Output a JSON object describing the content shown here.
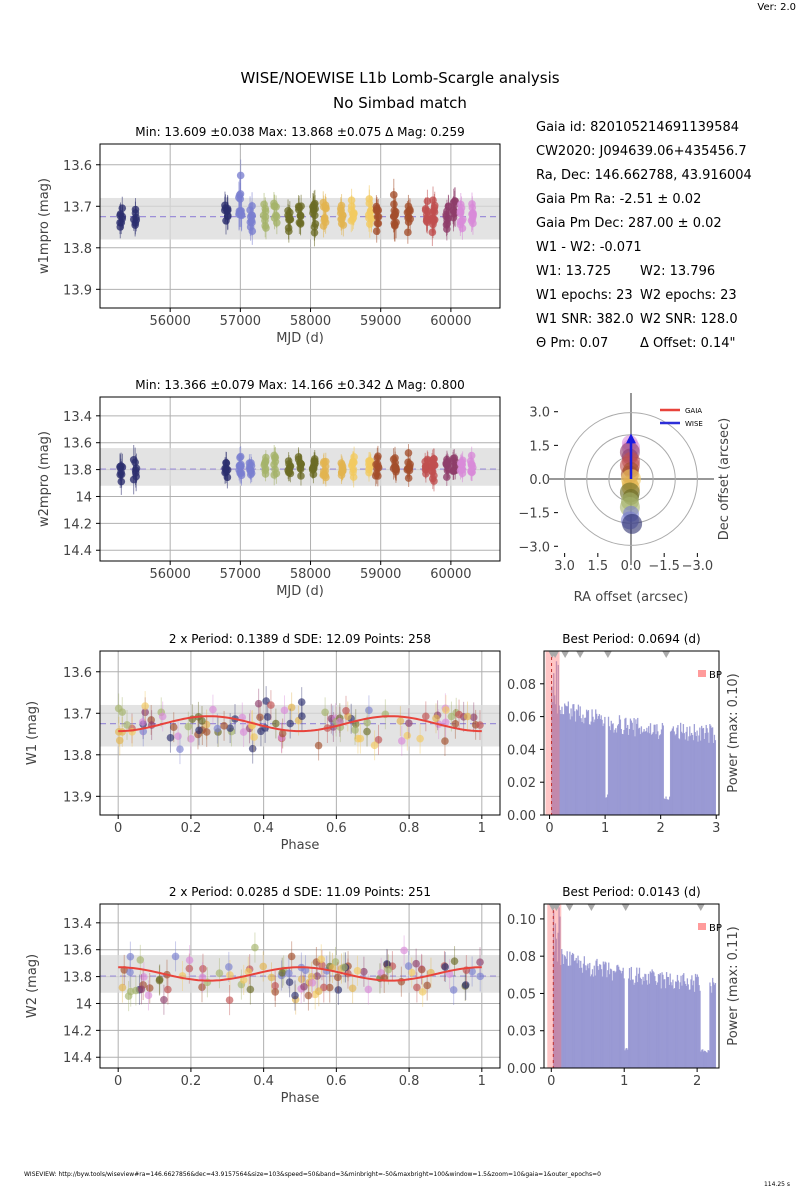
{
  "version": "Ver: 2.0",
  "title": "WISE/NOEWISE L1b Lomb-Scargle analysis",
  "subtitle": "No Simbad match",
  "info": [
    {
      "a": "Gaia id: 820105214691139584",
      "b": ""
    },
    {
      "a": "CW2020: J094639.06+435456.7",
      "b": ""
    },
    {
      "a": "Ra, Dec: 146.662788, 43.916004",
      "b": ""
    },
    {
      "a": "Gaia Pm Ra: -2.51 ± 0.02",
      "b": ""
    },
    {
      "a": "Gaia Pm Dec: 287.00 ± 0.02",
      "b": ""
    },
    {
      "a": "W1 - W2: -0.071",
      "b": ""
    },
    {
      "a": "W1: 13.725",
      "b": "W2: 13.796"
    },
    {
      "a": "W1 epochs: 23",
      "b": "W2 epochs: 23"
    },
    {
      "a": "W1 SNR: 382.0",
      "b": "W2 SNR: 128.0"
    },
    {
      "a": "Θ Pm: 0.07",
      "b": "Δ Offset: 0.14\""
    }
  ],
  "footer": "WISEVIEW: http://byw.tools/wiseview#ra=146.6627856&dec=43.9157564&size=103&speed=50&band=3&minbright=-50&maxbright=100&window=1.5&zoom=10&gaia=1&outer_epochs=0",
  "timing": "114.25 s",
  "colors": {
    "epochs": [
      "#2b2e6e",
      "#7a7fcf",
      "#a5b36a",
      "#6b6b25",
      "#e2b44f",
      "#f2ca60",
      "#a34e2b",
      "#c05050",
      "#8e3d6a",
      "#d88ad8"
    ],
    "fit": "#e8433b",
    "mean": "#9c8fd8",
    "periodogram": "#8f8fcf",
    "bp": "#ff7070"
  },
  "chart_data": [
    {
      "type": "scatter",
      "id": "w1-lightcurve",
      "title": "Min: 13.609 ±0.038     Max: 13.868 ±0.075     Δ Mag: 0.259",
      "xlabel": "MJD (d)",
      "ylabel": "w1mpro (mag)",
      "xlim": [
        55000,
        60700
      ],
      "ylim": [
        13.945,
        13.55
      ],
      "xticks": [
        56000,
        57000,
        58000,
        59000,
        60000
      ],
      "yticks": [
        13.6,
        13.7,
        13.8,
        13.9
      ],
      "mean": 13.725,
      "band": [
        13.68,
        13.78
      ],
      "epochs": [
        {
          "x": 55300,
          "y": 13.725,
          "n": 8,
          "spread": 0.05
        },
        {
          "x": 55500,
          "y": 13.73,
          "n": 7,
          "spread": 0.05
        },
        {
          "x": 56800,
          "y": 13.71,
          "n": 9,
          "spread": 0.06
        },
        {
          "x": 57000,
          "y": 13.7,
          "n": 12,
          "spread": 0.07
        },
        {
          "x": 57150,
          "y": 13.72,
          "n": 10,
          "spread": 0.06
        },
        {
          "x": 57350,
          "y": 13.72,
          "n": 8,
          "spread": 0.05
        },
        {
          "x": 57500,
          "y": 13.72,
          "n": 8,
          "spread": 0.05
        },
        {
          "x": 57700,
          "y": 13.72,
          "n": 10,
          "spread": 0.05
        },
        {
          "x": 57850,
          "y": 13.72,
          "n": 10,
          "spread": 0.05
        },
        {
          "x": 58050,
          "y": 13.72,
          "n": 12,
          "spread": 0.06
        },
        {
          "x": 58200,
          "y": 13.72,
          "n": 10,
          "spread": 0.05
        },
        {
          "x": 58450,
          "y": 13.72,
          "n": 10,
          "spread": 0.05
        },
        {
          "x": 58600,
          "y": 13.72,
          "n": 10,
          "spread": 0.05
        },
        {
          "x": 58850,
          "y": 13.72,
          "n": 10,
          "spread": 0.06
        },
        {
          "x": 58950,
          "y": 13.72,
          "n": 10,
          "spread": 0.05
        },
        {
          "x": 59200,
          "y": 13.72,
          "n": 12,
          "spread": 0.07
        },
        {
          "x": 59400,
          "y": 13.72,
          "n": 10,
          "spread": 0.05
        },
        {
          "x": 59650,
          "y": 13.72,
          "n": 10,
          "spread": 0.05
        },
        {
          "x": 59750,
          "y": 13.72,
          "n": 14,
          "spread": 0.06
        },
        {
          "x": 59950,
          "y": 13.72,
          "n": 10,
          "spread": 0.05
        },
        {
          "x": 60050,
          "y": 13.72,
          "n": 10,
          "spread": 0.06
        },
        {
          "x": 60150,
          "y": 13.72,
          "n": 10,
          "spread": 0.05
        },
        {
          "x": 60300,
          "y": 13.72,
          "n": 10,
          "spread": 0.05
        }
      ]
    },
    {
      "type": "scatter",
      "id": "w2-lightcurve",
      "title": "Min: 13.366 ±0.079     Max: 14.166 ±0.342     Δ Mag: 0.800",
      "xlabel": "MJD (d)",
      "ylabel": "w2mpro (mag)",
      "xlim": [
        55000,
        60700
      ],
      "ylim": [
        14.48,
        13.26
      ],
      "xticks": [
        56000,
        57000,
        58000,
        59000,
        60000
      ],
      "yticks": [
        13.4,
        13.6,
        13.8,
        14.0,
        14.2,
        14.4
      ],
      "mean": 13.796,
      "band": [
        13.64,
        13.92
      ],
      "epochs": [
        {
          "x": 55300,
          "y": 13.78,
          "n": 8,
          "spread": 0.18
        },
        {
          "x": 55500,
          "y": 13.78,
          "n": 7,
          "spread": 0.2
        },
        {
          "x": 56800,
          "y": 13.78,
          "n": 9,
          "spread": 0.15
        },
        {
          "x": 57000,
          "y": 13.78,
          "n": 12,
          "spread": 0.14
        },
        {
          "x": 57150,
          "y": 13.78,
          "n": 10,
          "spread": 0.12
        },
        {
          "x": 57350,
          "y": 13.78,
          "n": 8,
          "spread": 0.1
        },
        {
          "x": 57500,
          "y": 13.78,
          "n": 8,
          "spread": 0.14
        },
        {
          "x": 57700,
          "y": 13.78,
          "n": 10,
          "spread": 0.12
        },
        {
          "x": 57850,
          "y": 13.78,
          "n": 10,
          "spread": 0.13
        },
        {
          "x": 58050,
          "y": 13.78,
          "n": 12,
          "spread": 0.12
        },
        {
          "x": 58200,
          "y": 13.78,
          "n": 10,
          "spread": 0.12
        },
        {
          "x": 58450,
          "y": 13.78,
          "n": 10,
          "spread": 0.12
        },
        {
          "x": 58600,
          "y": 13.78,
          "n": 10,
          "spread": 0.14
        },
        {
          "x": 58850,
          "y": 13.78,
          "n": 10,
          "spread": 0.12
        },
        {
          "x": 58950,
          "y": 13.78,
          "n": 10,
          "spread": 0.14
        },
        {
          "x": 59200,
          "y": 13.78,
          "n": 12,
          "spread": 0.15
        },
        {
          "x": 59400,
          "y": 13.78,
          "n": 10,
          "spread": 0.12
        },
        {
          "x": 59650,
          "y": 13.78,
          "n": 10,
          "spread": 0.12
        },
        {
          "x": 59750,
          "y": 13.78,
          "n": 14,
          "spread": 0.14
        },
        {
          "x": 59950,
          "y": 13.78,
          "n": 10,
          "spread": 0.12
        },
        {
          "x": 60050,
          "y": 13.78,
          "n": 10,
          "spread": 0.12
        },
        {
          "x": 60150,
          "y": 13.78,
          "n": 10,
          "spread": 0.12
        },
        {
          "x": 60300,
          "y": 13.78,
          "n": 10,
          "spread": 0.12
        }
      ]
    },
    {
      "type": "scatter",
      "id": "astrometry",
      "xlabel": "RA offset (arcsec)",
      "ylabel": "Dec offset (arcsec)",
      "xlim": [
        3.3,
        -3.3
      ],
      "ylim": [
        -3.3,
        3.3
      ],
      "xticks": [
        3.0,
        1.5,
        0.0,
        -1.5,
        -3.0
      ],
      "xticklabels": [
        "3.0",
        "1.5",
        "0.0",
        "−1.5",
        "−3.0"
      ],
      "yticks": [
        3.0,
        1.5,
        0.0,
        -1.5,
        -3.0
      ],
      "yticklabels": [
        "3.0",
        "1.5",
        "0.0",
        "−1.5",
        "−3.0"
      ],
      "rings": [
        1.0,
        2.0,
        3.0
      ],
      "legend": [
        "GAIA",
        "WISE"
      ],
      "legend_colors": [
        "#e8433b",
        "#2c2ed8"
      ],
      "gaia_vector": {
        "from": [
          0,
          0
        ],
        "to": [
          0,
          1.9
        ]
      },
      "points": [
        [
          0.05,
          1.6
        ],
        [
          0.0,
          1.4
        ],
        [
          0.05,
          1.2
        ],
        [
          0.05,
          1.0
        ],
        [
          0.0,
          0.8
        ],
        [
          0.05,
          0.6
        ],
        [
          0.0,
          0.4
        ],
        [
          0.05,
          0.2
        ],
        [
          0.0,
          0.0
        ],
        [
          0.05,
          -0.2
        ],
        [
          0.0,
          -0.4
        ],
        [
          0.05,
          -0.6
        ],
        [
          0.0,
          -0.8
        ],
        [
          0.05,
          -1.0
        ],
        [
          0.05,
          -1.25
        ],
        [
          0.0,
          -1.55
        ],
        [
          0.05,
          -1.85
        ],
        [
          -0.05,
          -2.0
        ]
      ]
    },
    {
      "type": "scatter",
      "id": "w1-phase",
      "title": "2 x Period: 0.1389 d    SDE: 12.09    Points: 258",
      "xlabel": "Phase",
      "ylabel": "W1 (mag)",
      "xlim": [
        -0.05,
        1.05
      ],
      "ylim": [
        13.945,
        13.55
      ],
      "xticks": [
        0.0,
        0.2,
        0.4,
        0.6,
        0.8,
        1.0
      ],
      "yticks": [
        13.6,
        13.7,
        13.8,
        13.9
      ],
      "mean": 13.725,
      "band": [
        13.68,
        13.78
      ],
      "fit": {
        "mean": 13.725,
        "amp": 0.018,
        "cycles": 2,
        "phase": 0.0
      },
      "n": 110,
      "scatter_sd": 0.045
    },
    {
      "type": "bar",
      "id": "w1-periodogram",
      "title": "Best Period: 0.0694 (d)",
      "ylabel": "Power     (max: 0.10)",
      "xlim": [
        -0.1,
        3.05
      ],
      "ylim": [
        0,
        0.1
      ],
      "xticks": [
        0,
        1,
        2,
        3
      ],
      "yticks": [
        0.0,
        0.02,
        0.04,
        0.06,
        0.08
      ],
      "yticklabels": [
        "0.00",
        "0.02",
        "0.04",
        "0.06",
        "0.08"
      ],
      "legend": "BP",
      "aliases": [
        0.05,
        0.1,
        0.28,
        0.55,
        1.05,
        2.1
      ]
    },
    {
      "type": "scatter",
      "id": "w2-phase",
      "title": "2 x Period: 0.0285 d    SDE: 11.09    Points: 251",
      "xlabel": "Phase",
      "ylabel": "W2 (mag)",
      "xlim": [
        -0.05,
        1.05
      ],
      "ylim": [
        14.48,
        13.26
      ],
      "xticks": [
        0.0,
        0.2,
        0.4,
        0.6,
        0.8,
        1.0
      ],
      "yticks": [
        13.4,
        13.6,
        13.8,
        14.0,
        14.2,
        14.4
      ],
      "mean": 13.796,
      "band": [
        13.64,
        13.92
      ],
      "fit": {
        "mean": 13.78,
        "amp": 0.05,
        "cycles": 2,
        "phase": 0.5
      },
      "n": 110,
      "scatter_sd": 0.14
    },
    {
      "type": "bar",
      "id": "w2-periodogram",
      "title": "Best Period: 0.0143 (d)",
      "ylabel": "Power     (max: 0.11)",
      "xlim": [
        -0.1,
        2.3
      ],
      "ylim": [
        0,
        0.11
      ],
      "xticks": [
        0,
        1,
        2
      ],
      "yticks": [
        0.0,
        0.025,
        0.05,
        0.075,
        0.1
      ],
      "yticklabels": [
        "0.00",
        "0.03",
        "0.05",
        "0.08",
        "0.10"
      ],
      "legend": "BP",
      "aliases": [
        0.02,
        0.07,
        0.25,
        0.55,
        1.02,
        2.05
      ]
    }
  ]
}
